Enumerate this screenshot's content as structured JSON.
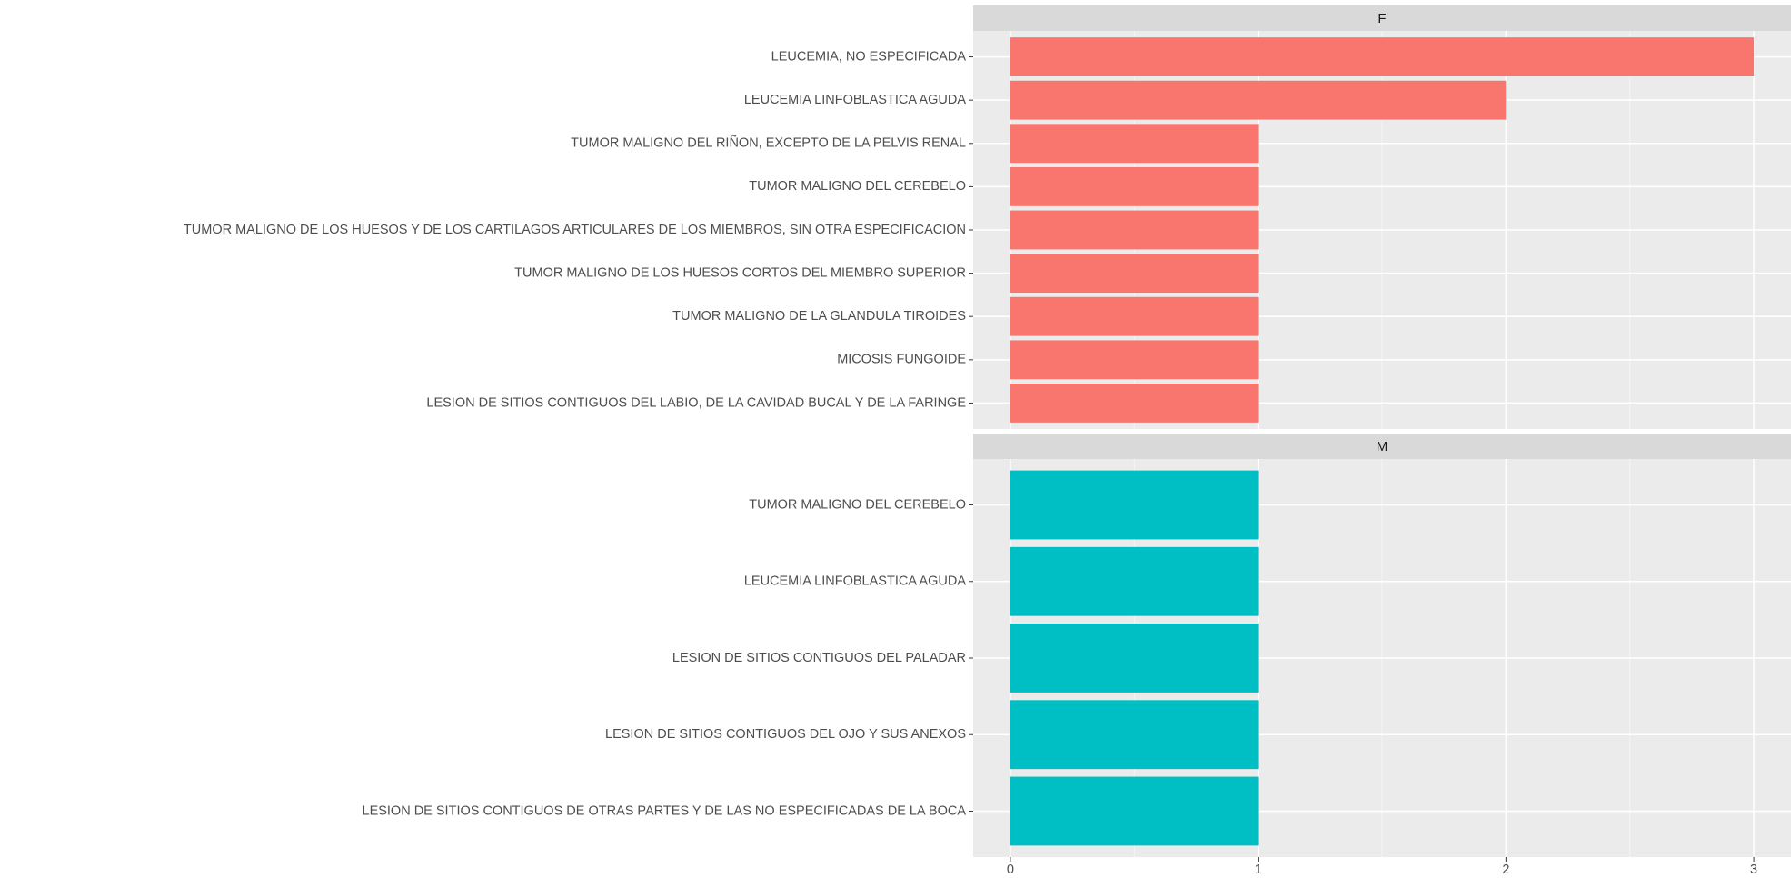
{
  "chart_data": {
    "type": "bar",
    "horizontal": true,
    "grid": true,
    "xlim": [
      -0.15,
      3.15
    ],
    "xticks": [
      0,
      1,
      2,
      3
    ],
    "facets": [
      {
        "name": "F",
        "color": "#F8766D",
        "categories": [
          "LEUCEMIA, NO ESPECIFICADA",
          "LEUCEMIA LINFOBLASTICA AGUDA",
          "TUMOR MALIGNO DEL RIÑON, EXCEPTO DE LA PELVIS RENAL",
          "TUMOR MALIGNO DEL CEREBELO",
          "TUMOR MALIGNO DE LOS HUESOS Y DE LOS CARTILAGOS ARTICULARES DE LOS MIEMBROS, SIN OTRA ESPECIFICACION",
          "TUMOR MALIGNO DE LOS HUESOS CORTOS DEL MIEMBRO SUPERIOR",
          "TUMOR MALIGNO DE LA GLANDULA TIROIDES",
          "MICOSIS FUNGOIDE",
          "LESION DE SITIOS CONTIGUOS DEL LABIO, DE LA CAVIDAD BUCAL Y DE LA FARINGE"
        ],
        "values": [
          3,
          2,
          1,
          1,
          1,
          1,
          1,
          1,
          1
        ]
      },
      {
        "name": "M",
        "color": "#00BFC4",
        "categories": [
          "TUMOR MALIGNO DEL CEREBELO",
          "LEUCEMIA LINFOBLASTICA AGUDA",
          "LESION DE SITIOS CONTIGUOS DEL PALADAR",
          "LESION DE SITIOS CONTIGUOS DEL OJO Y SUS ANEXOS",
          "LESION DE SITIOS CONTIGUOS DE OTRAS PARTES Y DE LAS NO ESPECIFICADAS DE LA BOCA"
        ],
        "values": [
          1,
          1,
          1,
          1,
          1
        ]
      }
    ]
  }
}
